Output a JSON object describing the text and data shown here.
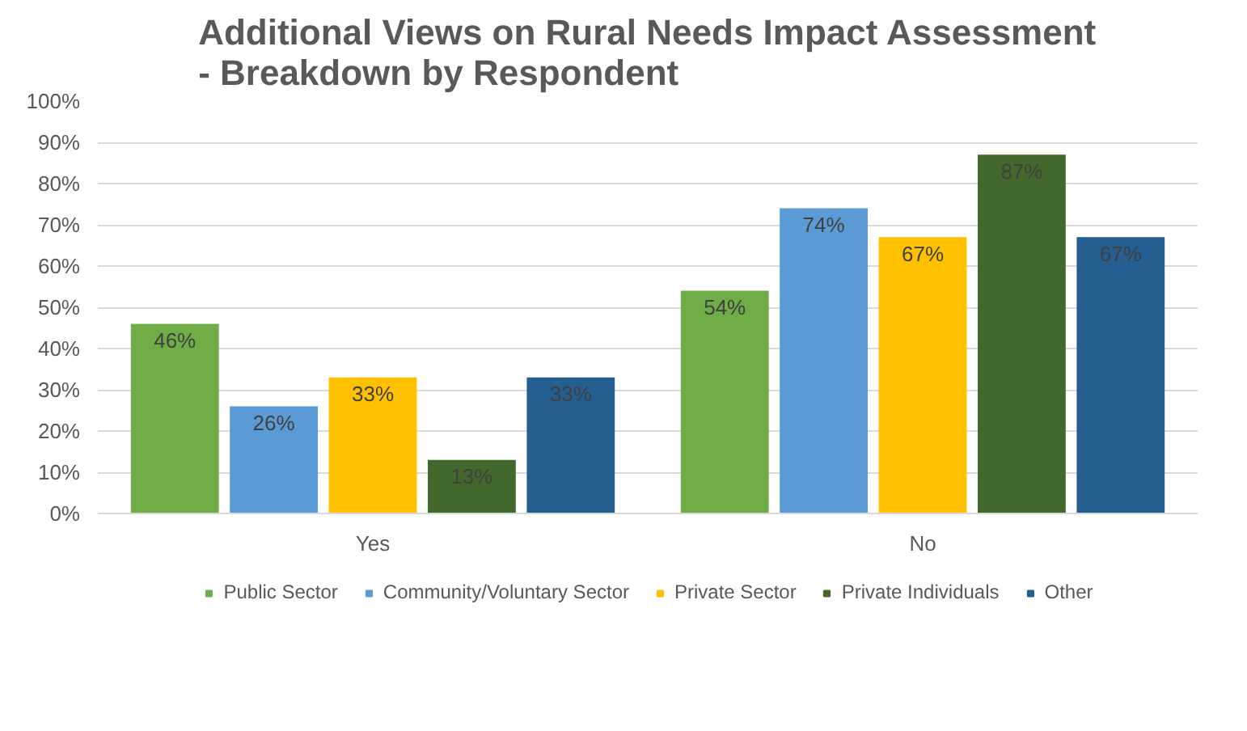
{
  "chart_data": {
    "type": "bar",
    "title": "Additional Views on Rural Needs Impact Assessment - Breakdown by Respondent",
    "categories": [
      "Yes",
      "No"
    ],
    "series": [
      {
        "name": "Public Sector",
        "color": "#70ad47",
        "values": [
          46,
          54
        ],
        "value_labels": [
          "46%",
          "54%"
        ]
      },
      {
        "name": "Community/Voluntary Sector",
        "color": "#5b9bd5",
        "values": [
          26,
          74
        ],
        "value_labels": [
          "26%",
          "74%"
        ]
      },
      {
        "name": "Private Sector",
        "color": "#ffc000",
        "values": [
          33,
          67
        ],
        "value_labels": [
          "33%",
          "67%"
        ]
      },
      {
        "name": "Private Individuals",
        "color": "#43682b",
        "values": [
          13,
          87
        ],
        "value_labels": [
          "13%",
          "87%"
        ]
      },
      {
        "name": "Other",
        "color": "#255e91",
        "values": [
          33,
          67
        ],
        "value_labels": [
          "33%",
          "67%"
        ]
      }
    ],
    "ylim": [
      0,
      100
    ],
    "yticks": [
      {
        "value": 0,
        "label": "0%"
      },
      {
        "value": 10,
        "label": "10%"
      },
      {
        "value": 20,
        "label": "20%"
      },
      {
        "value": 30,
        "label": "30%"
      },
      {
        "value": 40,
        "label": "40%"
      },
      {
        "value": 50,
        "label": "50%"
      },
      {
        "value": 60,
        "label": "60%"
      },
      {
        "value": 70,
        "label": "70%"
      },
      {
        "value": 80,
        "label": "80%"
      },
      {
        "value": 90,
        "label": "90%"
      },
      {
        "value": 100,
        "label": "100%"
      }
    ],
    "grid": "y",
    "legend": "bottom"
  }
}
